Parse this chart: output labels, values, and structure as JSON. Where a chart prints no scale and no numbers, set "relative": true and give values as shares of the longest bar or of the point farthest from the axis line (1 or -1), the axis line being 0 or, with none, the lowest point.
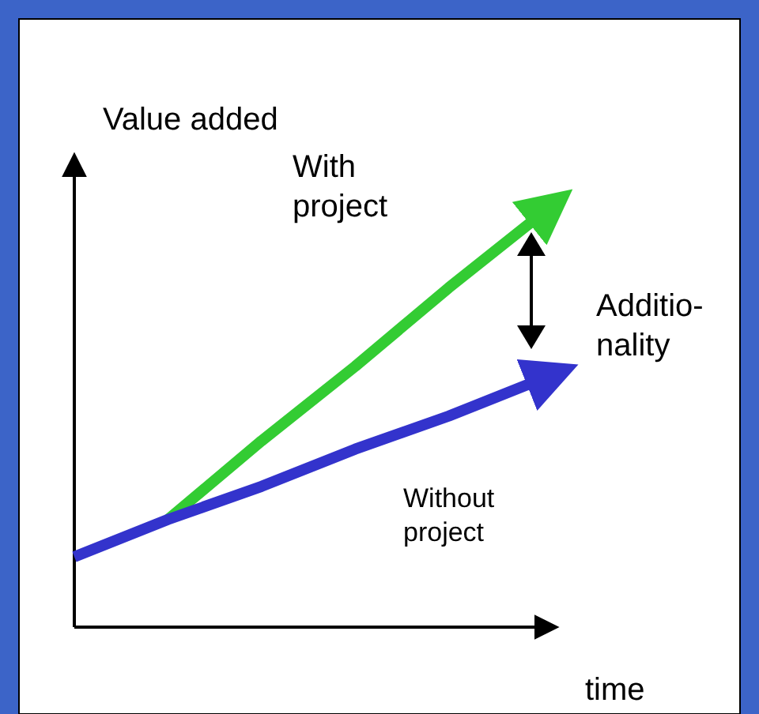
{
  "chart_data": {
    "type": "line",
    "relative": true,
    "xlabel": "time",
    "ylabel": "Value added",
    "categories": [
      null,
      null,
      null,
      null,
      null,
      null
    ],
    "series": [
      {
        "name": "With\nproject",
        "color": "#33cc33",
        "values": [
          null,
          0.26,
          0.45,
          0.63,
          0.82,
          1
        ]
      },
      {
        "name": "Without\nproject",
        "color": "#3333cc",
        "values": [
          0.17,
          0.26,
          0.34,
          0.43,
          0.51,
          0.6
        ]
      }
    ],
    "annotations": [
      "Additio-\nnality"
    ]
  }
}
